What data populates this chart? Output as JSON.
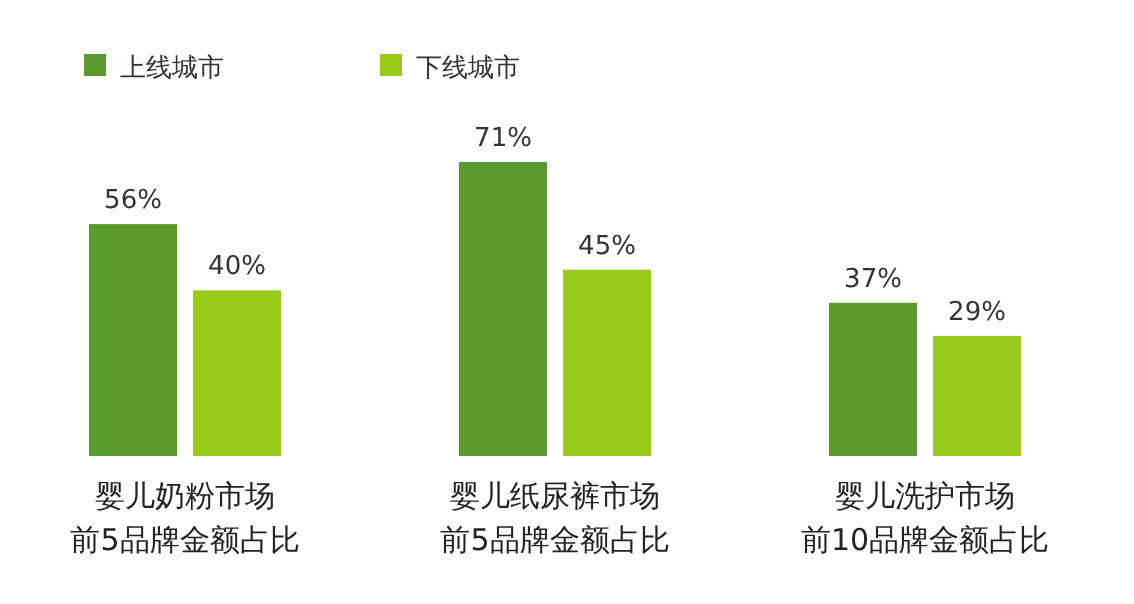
{
  "chart_data": {
    "type": "bar",
    "categories": [
      "婴儿奶粉市场前5品牌金额占比",
      "婴儿纸尿裤市场前5品牌金额占比",
      "婴儿洗护市场前10品牌金额占比"
    ],
    "series": [
      {
        "name": "上线城市",
        "color": "#5b9a2f",
        "values": [
          56,
          71,
          37
        ],
        "value_labels": [
          "56%",
          "71%",
          "37%"
        ]
      },
      {
        "name": "下线城市",
        "color": "#99cc1a",
        "values": [
          40,
          45,
          29
        ],
        "value_labels": [
          "40%",
          "45%",
          "29%"
        ]
      }
    ],
    "legend": "top left"
  }
}
